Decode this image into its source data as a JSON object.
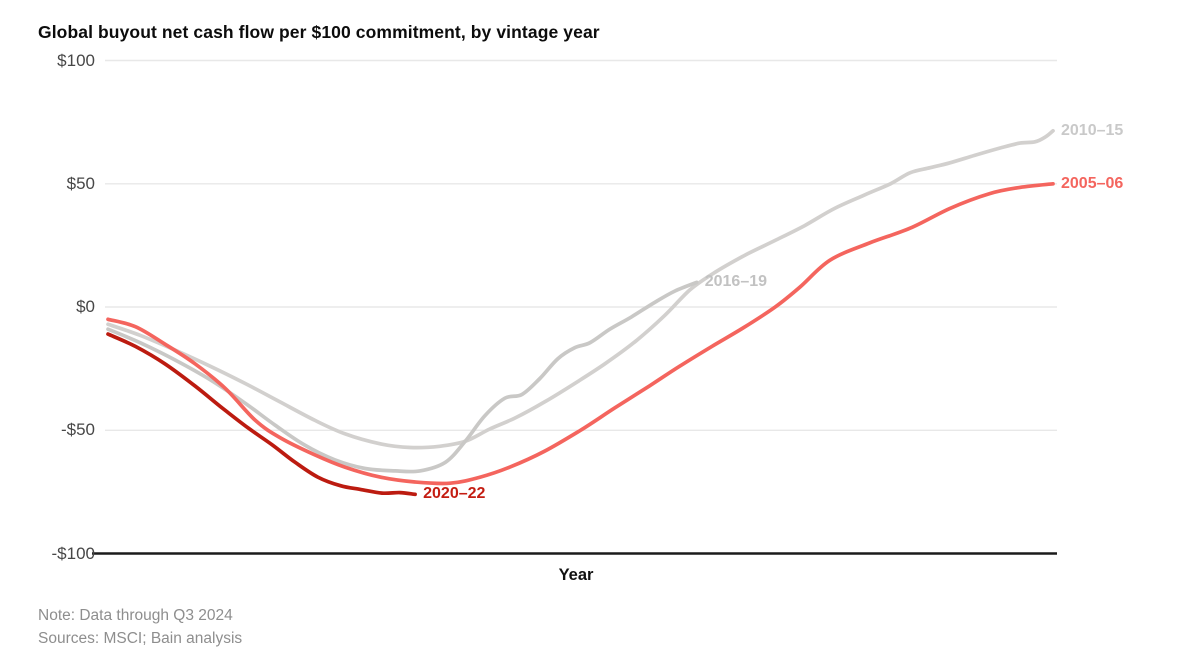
{
  "chart": {
    "title": "Global buyout net cash flow per $100 commitment, by vintage year",
    "x_axis": {
      "label": "Year"
    },
    "y_axis": {
      "tick_labels": [
        "$100",
        "$50",
        "$0",
        "-$50",
        "-$100"
      ],
      "tick_values": [
        100,
        50,
        0,
        -50,
        -100
      ]
    },
    "notes": [
      "Note: Data through Q3 2024",
      "Sources: MSCI; Bain analysis"
    ]
  },
  "colors": {
    "gridline": "#e8e8e8",
    "baseline_axis": "#1b1b1b",
    "tick_text": "#474747",
    "note_text": "#8e8e8e",
    "title_text": "#0c0c0c"
  },
  "chart_data": {
    "type": "line",
    "title": "Global buyout net cash flow per $100 commitment, by vintage year",
    "xlabel": "Year",
    "ylabel": "",
    "ylim": [
      -100,
      100
    ],
    "grid": "horizontal gridlines at $100, $50, $0, -$50; solid black baseline at -$100",
    "legend_position": "labels at line ends",
    "x_note": "x values are fractions of the x-axis span; no x tick labels are shown in the figure",
    "series": [
      {
        "id": "v2010-15",
        "name": "2010–15",
        "color": "#d2d0ce",
        "label_color": "#c9c9c9",
        "points": [
          [
            0.0,
            -7
          ],
          [
            0.034,
            -11.5
          ],
          [
            0.071,
            -17.5
          ],
          [
            0.108,
            -24
          ],
          [
            0.145,
            -31
          ],
          [
            0.182,
            -38.5
          ],
          [
            0.219,
            -46
          ],
          [
            0.251,
            -51.5
          ],
          [
            0.288,
            -55.5
          ],
          [
            0.32,
            -57
          ],
          [
            0.351,
            -56.5
          ],
          [
            0.378,
            -54.5
          ],
          [
            0.404,
            -49.5
          ],
          [
            0.431,
            -45
          ],
          [
            0.462,
            -38.5
          ],
          [
            0.494,
            -31
          ],
          [
            0.526,
            -23
          ],
          [
            0.558,
            -14
          ],
          [
            0.589,
            -3.5
          ],
          [
            0.616,
            7
          ],
          [
            0.642,
            14
          ],
          [
            0.674,
            21
          ],
          [
            0.706,
            27
          ],
          [
            0.737,
            33
          ],
          [
            0.769,
            40
          ],
          [
            0.801,
            45.5
          ],
          [
            0.828,
            50
          ],
          [
            0.849,
            54.5
          ],
          [
            0.87,
            56.5
          ],
          [
            0.891,
            58.5
          ],
          [
            0.917,
            61.5
          ],
          [
            0.944,
            64.5
          ],
          [
            0.965,
            66.5
          ],
          [
            0.981,
            67
          ],
          [
            0.992,
            69
          ],
          [
            1.0,
            71.5
          ]
        ]
      },
      {
        "id": "v2016-19",
        "name": "2016–19",
        "color": "#c9c8c6",
        "label_color": "#c2c2c2",
        "points": [
          [
            0.0,
            -9
          ],
          [
            0.034,
            -14.5
          ],
          [
            0.071,
            -21.5
          ],
          [
            0.108,
            -29.5
          ],
          [
            0.145,
            -39
          ],
          [
            0.177,
            -48
          ],
          [
            0.208,
            -56
          ],
          [
            0.24,
            -62
          ],
          [
            0.272,
            -65.5
          ],
          [
            0.304,
            -66.5
          ],
          [
            0.33,
            -66.5
          ],
          [
            0.357,
            -63
          ],
          [
            0.378,
            -54.5
          ],
          [
            0.399,
            -44
          ],
          [
            0.42,
            -37
          ],
          [
            0.438,
            -35.5
          ],
          [
            0.457,
            -29
          ],
          [
            0.476,
            -21
          ],
          [
            0.494,
            -16.5
          ],
          [
            0.51,
            -14.5
          ],
          [
            0.531,
            -9
          ],
          [
            0.554,
            -4
          ],
          [
            0.579,
            2
          ],
          [
            0.6,
            6.5
          ],
          [
            0.623,
            10
          ]
        ]
      },
      {
        "id": "v2005-06",
        "name": "2005–06",
        "color": "#f4655e",
        "label_color": "#f4655e",
        "points": [
          [
            0.0,
            -5
          ],
          [
            0.029,
            -8
          ],
          [
            0.06,
            -15
          ],
          [
            0.092,
            -23
          ],
          [
            0.124,
            -33
          ],
          [
            0.156,
            -46
          ],
          [
            0.182,
            -53
          ],
          [
            0.219,
            -60
          ],
          [
            0.251,
            -65
          ],
          [
            0.288,
            -69
          ],
          [
            0.325,
            -71
          ],
          [
            0.362,
            -71.5
          ],
          [
            0.394,
            -69
          ],
          [
            0.425,
            -65
          ],
          [
            0.462,
            -58.5
          ],
          [
            0.5,
            -50
          ],
          [
            0.536,
            -41
          ],
          [
            0.573,
            -32
          ],
          [
            0.605,
            -24
          ],
          [
            0.639,
            -16
          ],
          [
            0.672,
            -8.5
          ],
          [
            0.706,
            0
          ],
          [
            0.732,
            8
          ],
          [
            0.764,
            19
          ],
          [
            0.806,
            26
          ],
          [
            0.849,
            32
          ],
          [
            0.891,
            40
          ],
          [
            0.933,
            46
          ],
          [
            0.965,
            48.5
          ],
          [
            1.0,
            50
          ]
        ]
      },
      {
        "id": "v2020-22",
        "name": "2020–22",
        "color": "#bc1b10",
        "label_color": "#c41d12",
        "points": [
          [
            0.0,
            -11
          ],
          [
            0.029,
            -16
          ],
          [
            0.06,
            -23
          ],
          [
            0.092,
            -32
          ],
          [
            0.121,
            -41
          ],
          [
            0.148,
            -49
          ],
          [
            0.174,
            -56
          ],
          [
            0.198,
            -63
          ],
          [
            0.222,
            -69
          ],
          [
            0.246,
            -72.5
          ],
          [
            0.267,
            -74
          ],
          [
            0.29,
            -75.5
          ],
          [
            0.309,
            -75.3
          ],
          [
            0.325,
            -76
          ]
        ]
      }
    ]
  }
}
